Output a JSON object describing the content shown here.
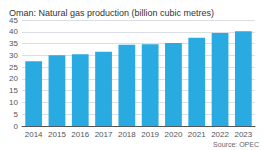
{
  "chart_data": {
    "type": "bar",
    "title": "Oman: Natural gas production (billion cubic metres)",
    "categories": [
      "2014",
      "2015",
      "2016",
      "2017",
      "2018",
      "2019",
      "2020",
      "2021",
      "2022",
      "2023"
    ],
    "values": [
      27.5,
      30.0,
      30.5,
      31.5,
      34.5,
      34.7,
      35.2,
      37.5,
      39.5,
      40.2
    ],
    "color": "#29ABE2",
    "ylim": [
      0,
      45
    ],
    "yticks": [
      0,
      5,
      10,
      15,
      20,
      25,
      30,
      35,
      40,
      45
    ],
    "grid": true,
    "annotations": [
      "Source: OPEC"
    ]
  }
}
